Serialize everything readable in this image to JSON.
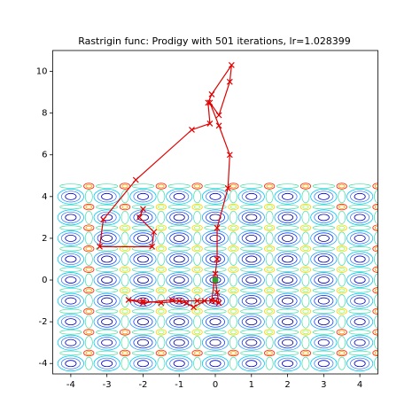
{
  "chart_data": {
    "type": "line",
    "title": "Rastrigin func: Prodigy with 501 iterations, lr=1.028399",
    "xlim": [
      -4.5,
      4.5
    ],
    "ylim": [
      -4.5,
      11
    ],
    "xticks": [
      -4,
      -3,
      -2,
      -1,
      0,
      1,
      2,
      3,
      4
    ],
    "yticks": [
      -4,
      -2,
      0,
      2,
      4,
      6,
      8,
      10
    ],
    "contour_range": [
      -4.5,
      4.5
    ],
    "series": [
      {
        "color": "#e00000",
        "x": [
          -2.0,
          -2.1,
          -1.7,
          -1.75,
          -3.2,
          -3.1,
          -2.2,
          -0.65,
          -0.15,
          -0.2,
          -0.1,
          0.45,
          0.4,
          0.1,
          -0.15,
          0.1,
          0.4,
          0.35,
          0.05,
          0.05,
          0.0,
          -0.1,
          -0.5,
          -1.0,
          -1.5,
          -2.0,
          -2.4,
          -2.0,
          -1.2,
          -0.8,
          -0.6,
          -0.3,
          0.0,
          0.1,
          0.05,
          0.0
        ],
        "values": [
          3.4,
          3.0,
          2.3,
          1.6,
          1.6,
          2.9,
          4.8,
          7.2,
          7.5,
          8.5,
          8.9,
          10.3,
          9.5,
          7.9,
          8.5,
          7.4,
          6.0,
          4.4,
          2.5,
          1.0,
          0.3,
          -1.0,
          -1.0,
          -1.0,
          -1.1,
          -1.0,
          -0.95,
          -1.1,
          -0.95,
          -1.1,
          -1.3,
          -1.0,
          -1.0,
          -1.1,
          -0.6,
          0.0
        ]
      }
    ],
    "target": {
      "x": 0,
      "y": 0,
      "color": "#2ca02c"
    }
  }
}
